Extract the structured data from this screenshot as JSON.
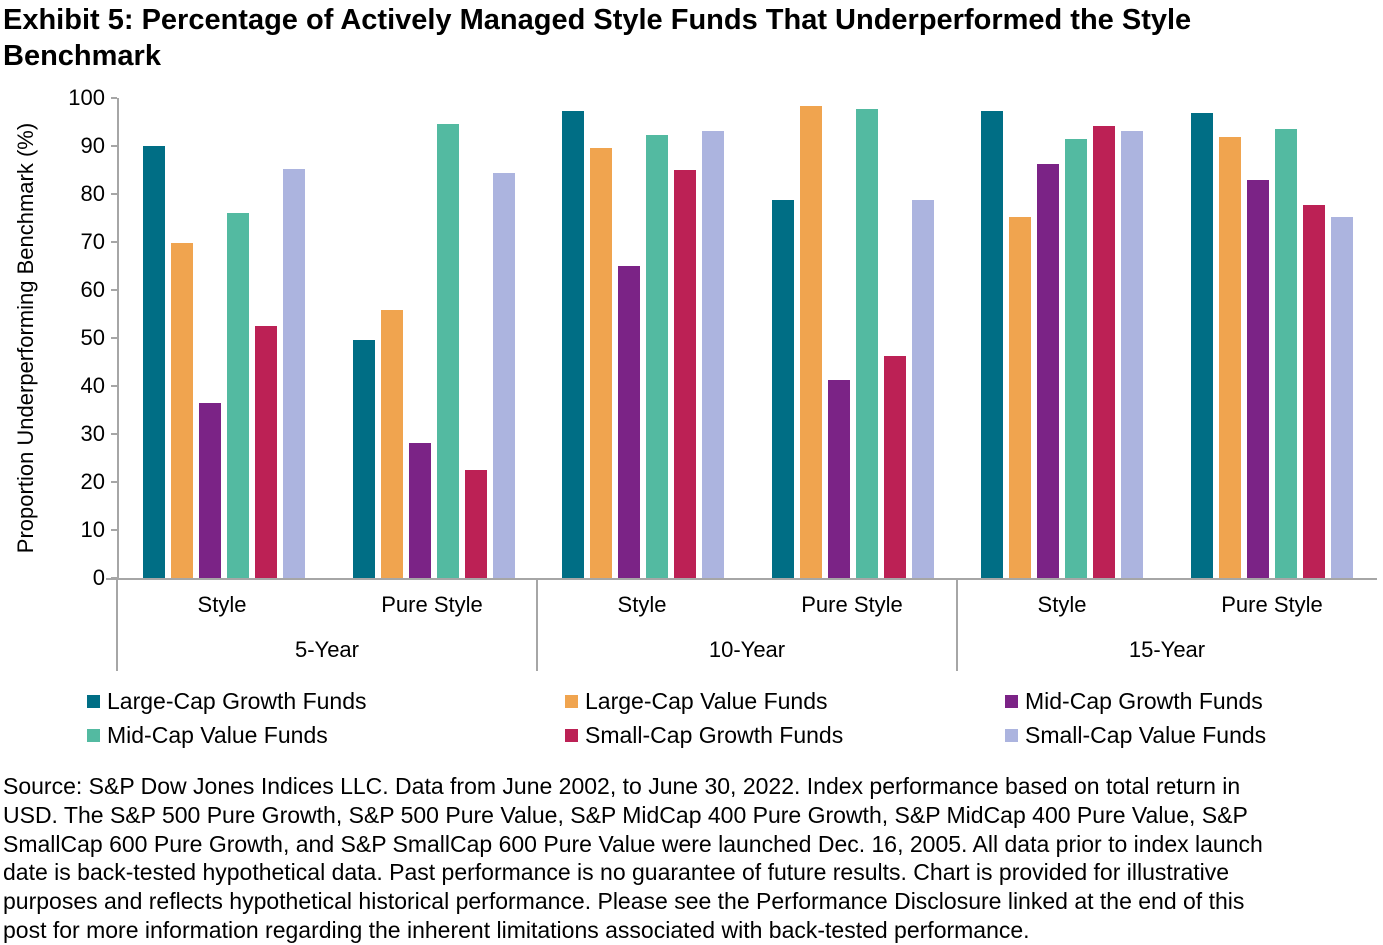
{
  "title": "Exhibit 5: Percentage of Actively Managed Style Funds That Underperformed the Style Benchmark",
  "colors": {
    "axis": "#a6a6a6",
    "text": "#000000"
  },
  "chart_data": {
    "type": "bar",
    "title": "Exhibit 5: Percentage of Actively Managed Style Funds That Underperformed the Style Benchmark",
    "ylabel": "Proportion Underperforming Benchmark (%)",
    "xlabel": "",
    "ylim": [
      0,
      100
    ],
    "ytick_step": 10,
    "yticks": [
      0,
      10,
      20,
      30,
      40,
      50,
      60,
      70,
      80,
      90,
      100
    ],
    "grid": false,
    "legend_position": "bottom",
    "periods": [
      "5-Year",
      "10-Year",
      "15-Year"
    ],
    "subcategories": [
      "Style",
      "Pure Style"
    ],
    "categories": [
      "5-Year Style",
      "5-Year Pure Style",
      "10-Year Style",
      "10-Year Pure Style",
      "15-Year Style",
      "15-Year Pure Style"
    ],
    "series": [
      {
        "name": "Large-Cap Growth Funds",
        "color": "#006E85",
        "values": [
          90.0,
          49.5,
          97.3,
          78.7,
          97.3,
          96.9
        ]
      },
      {
        "name": "Large-Cap Value Funds",
        "color": "#F0A44F",
        "values": [
          69.8,
          55.8,
          89.6,
          98.3,
          75.3,
          91.8
        ]
      },
      {
        "name": "Mid-Cap Growth Funds",
        "color": "#7B2386",
        "values": [
          36.4,
          28.1,
          65.0,
          41.2,
          86.2,
          83.0
        ]
      },
      {
        "name": "Mid-Cap Value Funds",
        "color": "#53BAA1",
        "values": [
          76.0,
          94.5,
          92.2,
          97.8,
          91.5,
          93.6
        ]
      },
      {
        "name": "Small-Cap Growth Funds",
        "color": "#BC2155",
        "values": [
          52.5,
          22.5,
          85.0,
          46.2,
          94.1,
          77.8
        ]
      },
      {
        "name": "Small-Cap Value Funds",
        "color": "#ACB4DF",
        "values": [
          85.2,
          84.3,
          93.1,
          78.7,
          93.1,
          75.2
        ]
      }
    ]
  },
  "source": {
    "lines": [
      "Source: S&P Dow Jones Indices LLC. Data from June 2002, to June 30, 2022. Index performance based on total return in",
      "USD. The S&P 500 Pure Growth, S&P 500 Pure Value, S&P MidCap 400 Pure Growth, S&P MidCap 400 Pure Value, S&P",
      "SmallCap 600 Pure Growth, and S&P SmallCap 600 Pure Value were launched Dec. 16, 2005. All data prior to index launch",
      "date is back-tested hypothetical data. Past performance is no guarantee of future results. Chart is provided for illustrative",
      "purposes and reflects hypothetical historical performance. Please see the Performance Disclosure linked at the end of this",
      "post for more information regarding the inherent limitations associated with back-tested performance."
    ]
  }
}
